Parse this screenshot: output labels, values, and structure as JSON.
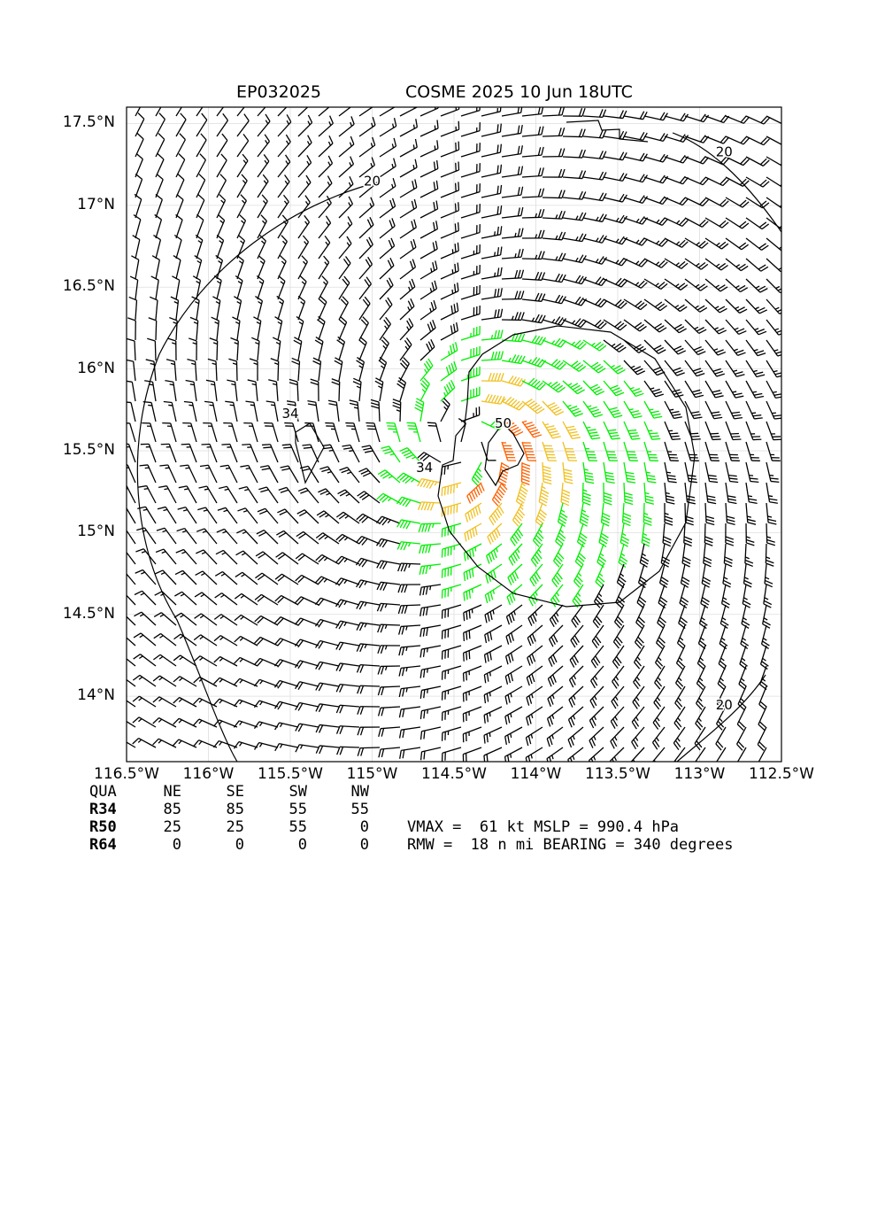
{
  "header": {
    "storm_id": "EP032025",
    "storm_title": "COSME 2025 10 Jun 18UTC"
  },
  "chart_data": {
    "type": "wind barb map",
    "x_ticks": [
      "116.5°W",
      "116°W",
      "115.5°W",
      "115°W",
      "114.5°W",
      "114°W",
      "113.5°W",
      "113°W",
      "112.5°W"
    ],
    "x_values": [
      -116.5,
      -116,
      -115.5,
      -115,
      -114.5,
      -114,
      -113.5,
      -113,
      -112.5
    ],
    "y_ticks": [
      "17.5°N",
      "17°N",
      "16.5°N",
      "16°N",
      "15.5°N",
      "15°N",
      "14.5°N",
      "14°N"
    ],
    "y_values": [
      17.5,
      17,
      16.5,
      16,
      15.5,
      15,
      14.5,
      14
    ],
    "xlim": [
      -116.5,
      -112.5
    ],
    "ylim": [
      13.6,
      17.6
    ],
    "grid": true,
    "center": {
      "lon": -114.45,
      "lat": 15.55
    },
    "contour_labels": [
      {
        "text": "20",
        "lon": -115.0,
        "lat": 17.12
      },
      {
        "text": "20",
        "lon": -112.85,
        "lat": 17.3
      },
      {
        "text": "20",
        "lon": -112.85,
        "lat": 13.92
      },
      {
        "text": "34",
        "lon": -115.5,
        "lat": 15.7
      },
      {
        "text": "34",
        "lon": -114.68,
        "lat": 15.37
      },
      {
        "text": "50",
        "lon": -114.2,
        "lat": 15.64
      }
    ],
    "barb_colors": {
      "below_34": "#000000",
      "34_to_50": "#00ee00",
      "50_to_64": "#f0c020",
      "64_plus": "#ff6000"
    }
  },
  "radii_table": {
    "header": [
      "QUA",
      "NE",
      "SE",
      "SW",
      "NW"
    ],
    "rows": [
      {
        "label": "R34",
        "values": [
          "85",
          "85",
          "55",
          "55"
        ]
      },
      {
        "label": "R50",
        "values": [
          "25",
          "25",
          "55",
          "0"
        ]
      },
      {
        "label": "R64",
        "values": [
          "0",
          "0",
          "0",
          "0"
        ]
      }
    ]
  },
  "stats": {
    "line1": "VMAX =  61 kt MSLP = 990.4 hPa",
    "line2": "RMW =  18 n mi BEARING = 340 degrees"
  }
}
